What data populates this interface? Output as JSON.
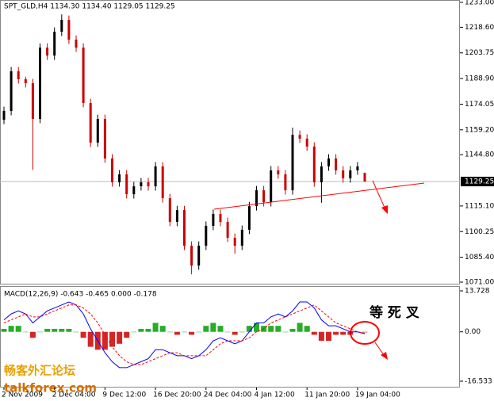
{
  "chart_data": [
    {
      "type": "candlestick",
      "title": "SPT_GLD,H4  1134.30 1134.40 1129.05 1129.25",
      "bull_color": "#000000",
      "bear_color": "#cc0000",
      "ylim": [
        1071,
        1233
      ],
      "yticks": [
        {
          "value": 1233,
          "label": "1233.00"
        },
        {
          "value": 1218.6,
          "label": "1218.60"
        },
        {
          "value": 1203.75,
          "label": "1203.75"
        },
        {
          "value": 1188.9,
          "label": "1188.90"
        },
        {
          "value": 1174.05,
          "label": "1174.05"
        },
        {
          "value": 1159.2,
          "label": "1159.20"
        },
        {
          "value": 1144.8,
          "label": "1144.80"
        },
        {
          "value": 1115.1,
          "label": "1115.10"
        },
        {
          "value": 1100.25,
          "label": "1100.25"
        },
        {
          "value": 1085.4,
          "label": "1085.40"
        },
        {
          "value": 1071,
          "label": "1071.00"
        }
      ],
      "current_price": {
        "value": 1129.25,
        "label": "1129.25"
      },
      "x": [
        "2 Nov 2009",
        null,
        null,
        null,
        null,
        null,
        null,
        "2 Dec 04:00",
        null,
        null,
        null,
        null,
        null,
        null,
        "9 Dec 12:00",
        null,
        null,
        null,
        null,
        null,
        null,
        "16 Dec 20:00",
        null,
        null,
        null,
        null,
        null,
        null,
        "24 Dec 04:00",
        null,
        null,
        null,
        null,
        null,
        null,
        "4 Jan 12:00",
        null,
        null,
        null,
        null,
        null,
        null,
        "11 Jan 20:00",
        null,
        null,
        null,
        null,
        null,
        null,
        "19 Jan 04:00",
        null
      ],
      "bars": [
        [
          1165.0,
          1172.6,
          1162.5,
          1170.1
        ],
        [
          1170.1,
          1195.6,
          1167.6,
          1193.1
        ],
        [
          1193.1,
          1195.6,
          1186.0,
          1188.5
        ],
        [
          1188.5,
          1190.0,
          1183.7,
          1186.2
        ],
        [
          1186.2,
          1188.7,
          1136.0,
          1165.5
        ],
        [
          1165.5,
          1209.3,
          1163.0,
          1206.8
        ],
        [
          1206.8,
          1209.3,
          1199.7,
          1202.2
        ],
        [
          1202.2,
          1218.5,
          1199.7,
          1216.0
        ],
        [
          1216.0,
          1226.0,
          1213.5,
          1222.9
        ],
        [
          1222.9,
          1225.4,
          1208.9,
          1211.4
        ],
        [
          1211.4,
          1213.9,
          1204.3,
          1206.8
        ],
        [
          1206.8,
          1209.3,
          1172.2,
          1174.7
        ],
        [
          1174.7,
          1177.2,
          1149.3,
          1151.8
        ],
        [
          1151.8,
          1168.0,
          1149.3,
          1165.5
        ],
        [
          1165.5,
          1168.0,
          1140.1,
          1142.6
        ],
        [
          1142.6,
          1145.1,
          1126.3,
          1128.8
        ],
        [
          1128.8,
          1135.9,
          1126.3,
          1133.4
        ],
        [
          1133.4,
          1135.9,
          1119.4,
          1121.9
        ],
        [
          1121.9,
          1129.0,
          1119.4,
          1126.5
        ],
        [
          1126.5,
          1131.3,
          1124.0,
          1128.8
        ],
        [
          1128.8,
          1131.3,
          1124.0,
          1126.5
        ],
        [
          1126.5,
          1140.5,
          1124.0,
          1138.0
        ],
        [
          1138.0,
          1140.5,
          1117.1,
          1119.6
        ],
        [
          1119.6,
          1122.1,
          1103.4,
          1105.9
        ],
        [
          1105.9,
          1115.2,
          1103.4,
          1112.7
        ],
        [
          1112.7,
          1115.2,
          1089.6,
          1092.1
        ],
        [
          1092.1,
          1094.6,
          1075.5,
          1080.6
        ],
        [
          1080.6,
          1094.6,
          1078.1,
          1092.1
        ],
        [
          1092.1,
          1106.1,
          1089.6,
          1103.6
        ],
        [
          1103.6,
          1113.0,
          1101.1,
          1110.5
        ],
        [
          1110.5,
          1113.0,
          1103.4,
          1105.9
        ],
        [
          1105.9,
          1108.4,
          1094.2,
          1096.7
        ],
        [
          1096.7,
          1099.2,
          1087.5,
          1092.1
        ],
        [
          1092.1,
          1103.8,
          1089.6,
          1101.3
        ],
        [
          1101.3,
          1117.5,
          1098.8,
          1115.0
        ],
        [
          1115.0,
          1126.7,
          1112.5,
          1124.2
        ],
        [
          1124.2,
          1126.7,
          1114.8,
          1117.3
        ],
        [
          1117.3,
          1138.2,
          1114.8,
          1135.7
        ],
        [
          1135.7,
          1138.2,
          1130.9,
          1133.4
        ],
        [
          1133.4,
          1135.9,
          1121.7,
          1124.2
        ],
        [
          1124.2,
          1160.5,
          1121.7,
          1156.3
        ],
        [
          1156.3,
          1158.8,
          1151.6,
          1154.1
        ],
        [
          1154.1,
          1156.6,
          1147.0,
          1149.5
        ],
        [
          1149.5,
          1152.0,
          1126.3,
          1128.8
        ],
        [
          1128.8,
          1140.5,
          1117.0,
          1138.0
        ],
        [
          1138.0,
          1145.1,
          1135.5,
          1142.6
        ],
        [
          1142.6,
          1145.1,
          1133.2,
          1135.7
        ],
        [
          1135.7,
          1138.2,
          1128.6,
          1131.1
        ],
        [
          1131.1,
          1138.2,
          1128.6,
          1135.7
        ],
        [
          1135.7,
          1140.5,
          1133.2,
          1138.0
        ],
        [
          1134.3,
          1134.4,
          1129.05,
          1129.25
        ]
      ]
    },
    {
      "type": "macd",
      "title": "MACD(12,26,9) -0.643 -0.465 0.000 -0.178",
      "ylim": [
        -16.533,
        13.728
      ],
      "yticks": [
        13.728,
        {
          "value": 0,
          "label": "0.00"
        },
        -16.533
      ],
      "pos_color": "#00a000",
      "neg_color": "#cc0000",
      "histogram": [
        1,
        2,
        2,
        0,
        -2,
        0,
        1,
        1,
        1,
        1,
        0,
        -2,
        -5,
        -6,
        -6,
        -5,
        -4,
        -2,
        0,
        1,
        1,
        3,
        2,
        0,
        -1,
        0,
        -1,
        0,
        2,
        3,
        2,
        0,
        -1,
        0,
        2,
        3,
        2,
        2,
        2,
        0,
        1,
        3,
        2,
        -1,
        -3,
        -3,
        -1,
        -1,
        -1,
        0,
        -0.178
      ],
      "series": [
        {
          "name": "MACD",
          "color": "#0000ff",
          "values": [
            4,
            6,
            7,
            6,
            3,
            5,
            7,
            8,
            9,
            10,
            9,
            6,
            1,
            -3,
            -7,
            -10,
            -12,
            -12,
            -11,
            -10,
            -9,
            -6,
            -6,
            -7,
            -8,
            -8,
            -9,
            -8,
            -6,
            -3,
            -2,
            -3,
            -4,
            -3,
            0,
            3,
            3,
            5,
            6,
            5,
            7,
            10,
            10,
            8,
            4,
            2,
            2,
            1,
            0,
            0,
            -0.643
          ]
        },
        {
          "name": "Signal",
          "color": "#ff0000",
          "dashed": true,
          "values": [
            3,
            4,
            5,
            6,
            5,
            5,
            6,
            7,
            8,
            9,
            9,
            8,
            6,
            3,
            -1,
            -5,
            -8,
            -10,
            -11,
            -11,
            -10,
            -9,
            -8,
            -7,
            -7,
            -8,
            -8,
            -8,
            -8,
            -6,
            -4,
            -3,
            -3,
            -3,
            -2,
            0,
            1,
            3,
            4,
            5,
            6,
            7,
            8,
            9,
            7,
            5,
            3,
            2,
            1,
            0,
            -0.465
          ]
        }
      ],
      "annotation": "等 死 叉"
    }
  ],
  "watermark": [
    "畅客外汇论坛",
    "talkforex.com"
  ]
}
